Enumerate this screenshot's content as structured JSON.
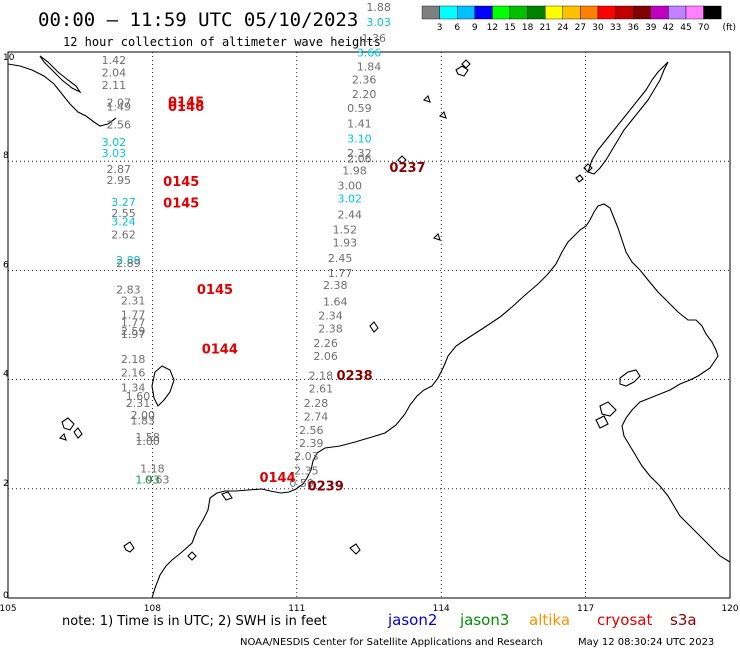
{
  "header": {
    "title": "00:00 – 11:59 UTC 05/10/2023",
    "subtitle": "12 hour collection of altimeter wave heights"
  },
  "colorbar": {
    "colors": [
      "#7f7f7f",
      "#00ffff",
      "#00c0ff",
      "#0000ff",
      "#00ff00",
      "#00c000",
      "#008000",
      "#ffff00",
      "#ffc000",
      "#ff8000",
      "#ff0000",
      "#c00000",
      "#800000",
      "#c000c0",
      "#c080ff",
      "#ff80ff",
      "#000000"
    ],
    "labels": [
      "3",
      "6",
      "9",
      "12",
      "15",
      "18",
      "21",
      "24",
      "27",
      "30",
      "33",
      "36",
      "39",
      "42",
      "45",
      "70"
    ],
    "unit": "(ft)"
  },
  "axes": {
    "lon_range": [
      105,
      120
    ],
    "lat_range": [
      0,
      10
    ],
    "x_ticks": [
      105,
      108,
      111,
      114,
      117,
      120
    ],
    "y_ticks": [
      0,
      2,
      4,
      6,
      8,
      10
    ]
  },
  "colors": {
    "grey": "#707070",
    "cyan": "#00c8e0",
    "green": "#00b040",
    "red": "#e00000",
    "darkred": "#8b0000"
  },
  "observations": [
    {
      "lon": 107.2,
      "lat": 9.78,
      "v": "1.42",
      "c": "grey"
    },
    {
      "lon": 107.2,
      "lat": 9.55,
      "v": "2.04",
      "c": "grey"
    },
    {
      "lon": 107.2,
      "lat": 9.32,
      "v": "2.11",
      "c": "grey"
    },
    {
      "lon": 107.3,
      "lat": 9.0,
      "v": "2.07",
      "c": "grey"
    },
    {
      "lon": 107.3,
      "lat": 8.93,
      "v": "1.49",
      "c": "grey"
    },
    {
      "lon": 107.3,
      "lat": 8.6,
      "v": "2.56",
      "c": "grey"
    },
    {
      "lon": 107.2,
      "lat": 8.28,
      "v": "3.02",
      "c": "cyan"
    },
    {
      "lon": 107.2,
      "lat": 8.08,
      "v": "3.03",
      "c": "cyan"
    },
    {
      "lon": 107.3,
      "lat": 7.78,
      "v": "2.87",
      "c": "grey"
    },
    {
      "lon": 107.3,
      "lat": 7.58,
      "v": "2.95",
      "c": "grey"
    },
    {
      "lon": 107.4,
      "lat": 7.18,
      "v": "3.27",
      "c": "cyan"
    },
    {
      "lon": 107.4,
      "lat": 6.98,
      "v": "2.55",
      "c": "grey"
    },
    {
      "lon": 107.4,
      "lat": 6.82,
      "v": "3.24",
      "c": "cyan"
    },
    {
      "lon": 107.4,
      "lat": 6.58,
      "v": "2.62",
      "c": "grey"
    },
    {
      "lon": 107.5,
      "lat": 6.12,
      "v": "2.89",
      "c": "cyan"
    },
    {
      "lon": 107.5,
      "lat": 6.06,
      "v": "2.89",
      "c": "grey"
    },
    {
      "lon": 107.5,
      "lat": 5.58,
      "v": "2.83",
      "c": "grey"
    },
    {
      "lon": 107.6,
      "lat": 5.38,
      "v": "2.31",
      "c": "grey"
    },
    {
      "lon": 107.6,
      "lat": 5.12,
      "v": "1.77",
      "c": "grey"
    },
    {
      "lon": 107.6,
      "lat": 4.97,
      "v": "1.77",
      "c": "grey"
    },
    {
      "lon": 107.6,
      "lat": 4.82,
      "v": "2.59",
      "c": "grey"
    },
    {
      "lon": 107.6,
      "lat": 4.76,
      "v": "1.97",
      "c": "grey"
    },
    {
      "lon": 107.6,
      "lat": 4.3,
      "v": "2.18",
      "c": "grey"
    },
    {
      "lon": 107.6,
      "lat": 4.06,
      "v": "2.16",
      "c": "grey"
    },
    {
      "lon": 107.6,
      "lat": 3.78,
      "v": "1.34",
      "c": "grey"
    },
    {
      "lon": 107.7,
      "lat": 3.63,
      "v": "1.60",
      "c": "grey"
    },
    {
      "lon": 107.7,
      "lat": 3.5,
      "v": "2.31",
      "c": "grey"
    },
    {
      "lon": 107.8,
      "lat": 3.28,
      "v": "2.00",
      "c": "grey"
    },
    {
      "lon": 107.8,
      "lat": 3.18,
      "v": "1.83",
      "c": "grey"
    },
    {
      "lon": 107.9,
      "lat": 2.88,
      "v": "1.58",
      "c": "grey"
    },
    {
      "lon": 107.9,
      "lat": 2.8,
      "v": "1.00",
      "c": "grey"
    },
    {
      "lon": 108.0,
      "lat": 2.3,
      "v": "1.18",
      "c": "grey"
    },
    {
      "lon": 107.9,
      "lat": 2.1,
      "v": "1.93",
      "c": "green"
    },
    {
      "lon": 108.1,
      "lat": 2.1,
      "v": "0.63",
      "c": "grey"
    },
    {
      "lon": 111.1,
      "lat": 2.03,
      "v": "0.59",
      "c": "grey"
    },
    {
      "lon": 111.2,
      "lat": 2.26,
      "v": "2.35",
      "c": "grey"
    },
    {
      "lon": 111.2,
      "lat": 2.53,
      "v": "2.03",
      "c": "grey"
    },
    {
      "lon": 111.3,
      "lat": 2.77,
      "v": "2.39",
      "c": "grey"
    },
    {
      "lon": 111.3,
      "lat": 3.0,
      "v": "2.56",
      "c": "grey"
    },
    {
      "lon": 111.4,
      "lat": 3.25,
      "v": "2.74",
      "c": "grey"
    },
    {
      "lon": 111.4,
      "lat": 3.5,
      "v": "2.28",
      "c": "grey"
    },
    {
      "lon": 111.5,
      "lat": 3.76,
      "v": "2.61",
      "c": "grey"
    },
    {
      "lon": 111.5,
      "lat": 4.0,
      "v": "2.18",
      "c": "grey"
    },
    {
      "lon": 111.6,
      "lat": 4.36,
      "v": "2.06",
      "c": "grey"
    },
    {
      "lon": 111.6,
      "lat": 4.6,
      "v": "2.26",
      "c": "grey"
    },
    {
      "lon": 111.7,
      "lat": 4.86,
      "v": "2.38",
      "c": "grey"
    },
    {
      "lon": 111.7,
      "lat": 5.1,
      "v": "2.34",
      "c": "grey"
    },
    {
      "lon": 111.8,
      "lat": 5.36,
      "v": "1.64",
      "c": "grey"
    },
    {
      "lon": 111.8,
      "lat": 5.66,
      "v": "2.38",
      "c": "grey"
    },
    {
      "lon": 111.9,
      "lat": 5.88,
      "v": "1.77",
      "c": "grey"
    },
    {
      "lon": 111.9,
      "lat": 6.15,
      "v": "2.45",
      "c": "grey"
    },
    {
      "lon": 112.0,
      "lat": 6.44,
      "v": "1.93",
      "c": "grey"
    },
    {
      "lon": 112.0,
      "lat": 6.68,
      "v": "1.52",
      "c": "grey"
    },
    {
      "lon": 112.1,
      "lat": 6.95,
      "v": "2.44",
      "c": "grey"
    },
    {
      "lon": 112.1,
      "lat": 7.24,
      "v": "3.02",
      "c": "cyan"
    },
    {
      "lon": 112.1,
      "lat": 7.48,
      "v": "3.00",
      "c": "grey"
    },
    {
      "lon": 112.2,
      "lat": 7.76,
      "v": "1.98",
      "c": "grey"
    },
    {
      "lon": 112.3,
      "lat": 7.98,
      "v": "2.06",
      "c": "grey"
    },
    {
      "lon": 112.3,
      "lat": 8.08,
      "v": "2.32",
      "c": "grey"
    },
    {
      "lon": 112.3,
      "lat": 8.34,
      "v": "3.10",
      "c": "cyan"
    },
    {
      "lon": 112.3,
      "lat": 8.62,
      "v": "1.41",
      "c": "grey"
    },
    {
      "lon": 112.3,
      "lat": 8.9,
      "v": "0.59",
      "c": "grey"
    },
    {
      "lon": 112.4,
      "lat": 9.16,
      "v": "2.20",
      "c": "grey"
    },
    {
      "lon": 112.4,
      "lat": 9.42,
      "v": "2.36",
      "c": "grey"
    },
    {
      "lon": 112.5,
      "lat": 9.66,
      "v": "1.84",
      "c": "grey"
    },
    {
      "lon": 112.5,
      "lat": 9.92,
      "v": "3.66",
      "c": "cyan"
    },
    {
      "lon": 112.6,
      "lat": 10.18,
      "v": "1.36",
      "c": "grey"
    },
    {
      "lon": 112.7,
      "lat": 10.48,
      "v": "3.03",
      "c": "cyan"
    },
    {
      "lon": 112.7,
      "lat": 10.75,
      "v": "1.88",
      "c": "grey"
    }
  ],
  "time_labels": [
    {
      "lon": 108.7,
      "lat": 9.0,
      "t": "0145",
      "c": "red"
    },
    {
      "lon": 108.7,
      "lat": 8.92,
      "t": "0146",
      "c": "red"
    },
    {
      "lon": 108.6,
      "lat": 7.55,
      "t": "0145",
      "c": "red"
    },
    {
      "lon": 108.6,
      "lat": 7.15,
      "t": "0145",
      "c": "red"
    },
    {
      "lon": 109.3,
      "lat": 5.57,
      "t": "0145",
      "c": "red"
    },
    {
      "lon": 109.4,
      "lat": 4.48,
      "t": "0144",
      "c": "red"
    },
    {
      "lon": 110.6,
      "lat": 2.12,
      "t": "0144",
      "c": "red"
    },
    {
      "lon": 113.3,
      "lat": 7.8,
      "t": "0237",
      "c": "darkred"
    },
    {
      "lon": 112.2,
      "lat": 3.99,
      "t": "0238",
      "c": "darkred"
    },
    {
      "lon": 111.6,
      "lat": 1.97,
      "t": "0239",
      "c": "darkred"
    }
  ],
  "footer": {
    "note": "note: 1) Time is in UTC; 2) SWH is in feet",
    "satellites": [
      {
        "name": "jason2",
        "color": "#0000e0"
      },
      {
        "name": "jason3",
        "color": "#009000"
      },
      {
        "name": "altika",
        "color": "#ff9000"
      },
      {
        "name": "cryosat",
        "color": "#e00000"
      },
      {
        "name": "s3a",
        "color": "#8b0000"
      }
    ],
    "credit": "NOAA/NESDIS Center for Satellite Applications and Research",
    "generated": "May 12 08:30:24 UTC 2023"
  }
}
